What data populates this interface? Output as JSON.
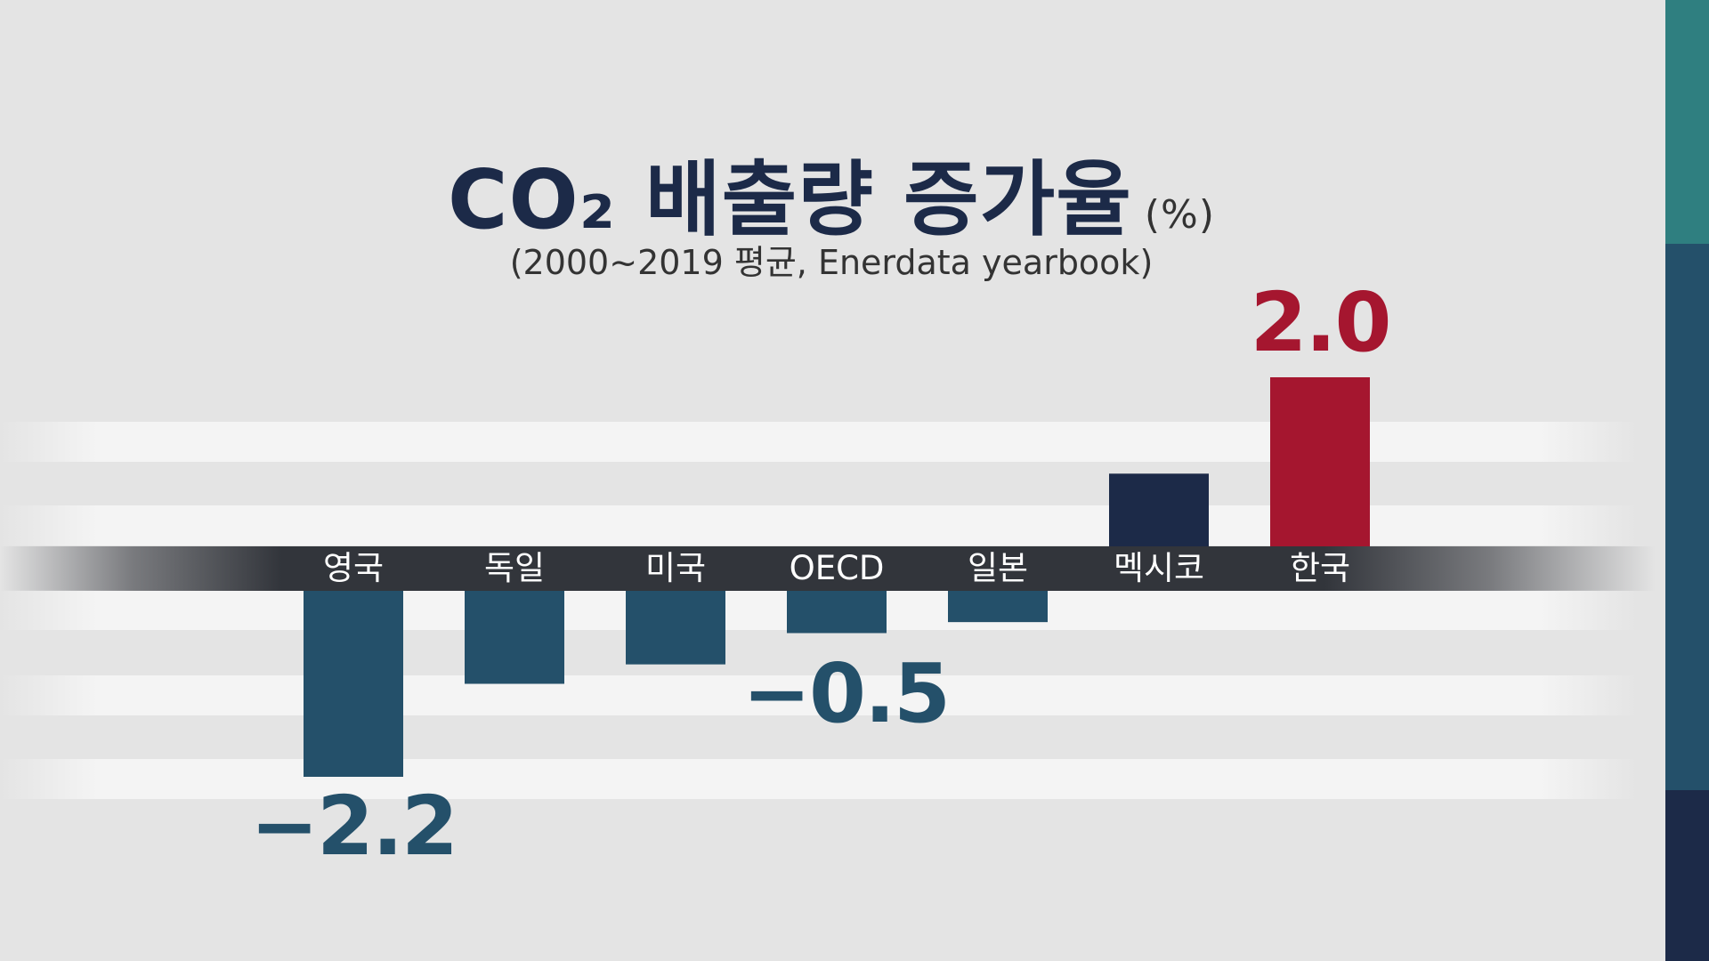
{
  "chart_data": {
    "type": "bar",
    "title": "CO₂ 배출량 증가율",
    "title_unit": "(%)",
    "subtitle": "(2000~2019 평균, Enerdata yearbook)",
    "categories": [
      "영국",
      "독일",
      "미국",
      "OECD",
      "일본",
      "멕시코",
      "한국"
    ],
    "values": [
      -2.2,
      -1.1,
      -0.87,
      -0.5,
      -0.37,
      0.86,
      2.0
    ],
    "data_labels": [
      {
        "category": "영국",
        "text": "−2.2"
      },
      {
        "category": "OECD",
        "text": "−0.5"
      },
      {
        "category": "한국",
        "text": "2.0"
      }
    ],
    "ylim": [
      -2.6,
      2.6
    ],
    "grid": false,
    "colors": {
      "negative": "#24506a",
      "mexico": "#1c2a48",
      "highlight": "#a5162f",
      "title": "#1c2a48"
    }
  }
}
